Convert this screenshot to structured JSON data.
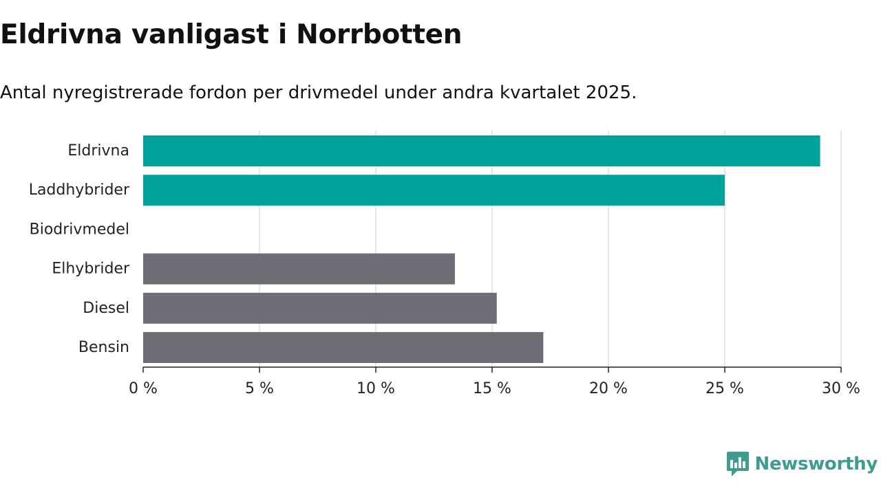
{
  "header": {
    "title": "Eldrivna vanligast i Norrbotten",
    "subtitle": "Antal nyregistrerade fordon per drivmedel under andra kvartalet 2025."
  },
  "chart_data": {
    "type": "bar",
    "orientation": "horizontal",
    "categories": [
      "Eldrivna",
      "Laddhybrider",
      "Biodrivmedel",
      "Elhybrider",
      "Diesel",
      "Bensin"
    ],
    "values": [
      29.1,
      25.0,
      0,
      13.4,
      15.2,
      17.2
    ],
    "colors": [
      "#00a39a",
      "#00a39a",
      "#6e6c74",
      "#6e6c74",
      "#6e6c74",
      "#6e6c74"
    ],
    "xlim": [
      0,
      30
    ],
    "xticks": [
      0,
      5,
      10,
      15,
      20,
      25,
      30
    ],
    "xtick_labels": [
      "0 %",
      "5 %",
      "10 %",
      "15 %",
      "20 %",
      "25 %",
      "30 %"
    ],
    "grid": "vertical",
    "xlabel": "",
    "ylabel": ""
  },
  "brand": {
    "name": "Newsworthy",
    "icon": "newsworthy-logo-icon",
    "color": "#3d9c8f"
  }
}
